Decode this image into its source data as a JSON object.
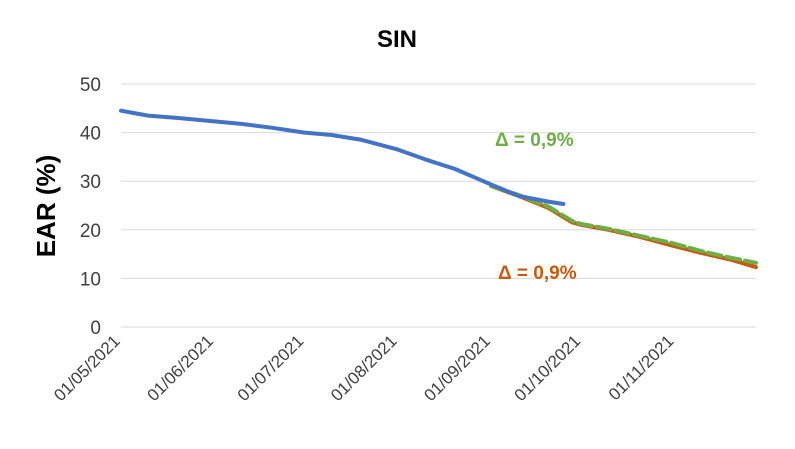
{
  "chart_data": {
    "type": "line",
    "title": "SIN",
    "ylabel": "EAR (%)",
    "xlabel": "",
    "ylim": [
      0,
      50
    ],
    "yticks": [
      "0",
      "10",
      "20",
      "30",
      "40",
      "50"
    ],
    "xlim": [
      "2021-05-01",
      "2021-11-28"
    ],
    "xticks": [
      "01/05/2021",
      "01/06/2021",
      "01/07/2021",
      "01/08/2021",
      "01/09/2021",
      "01/10/2021",
      "01/11/2021"
    ],
    "grid": "horizontal",
    "annotations": [
      {
        "text": "Δ = 0,9%",
        "color": "#70ad47"
      },
      {
        "text": "Δ = 0,9%",
        "color": "#c55a11"
      }
    ],
    "series": [
      {
        "color": "#c55a11",
        "style": "solid",
        "x": [
          "2021-09-01",
          "2021-09-10",
          "2021-09-20",
          "2021-09-28",
          "2021-10-01",
          "2021-10-10",
          "2021-10-20",
          "2021-10-31",
          "2021-11-10",
          "2021-11-20",
          "2021-11-28"
        ],
        "y": [
          29.0,
          27.0,
          24.5,
          21.5,
          21.0,
          20.0,
          18.6,
          16.8,
          15.2,
          13.8,
          12.3
        ]
      },
      {
        "color": "#70ad47",
        "style": "dashed",
        "x": [
          "2021-09-01",
          "2021-09-10",
          "2021-09-20",
          "2021-09-28",
          "2021-10-01",
          "2021-10-10",
          "2021-10-20",
          "2021-10-31",
          "2021-11-10",
          "2021-11-20",
          "2021-11-28"
        ],
        "y": [
          29.0,
          27.2,
          24.8,
          21.8,
          21.2,
          20.2,
          18.8,
          17.3,
          15.6,
          14.2,
          13.2
        ]
      },
      {
        "color": "#4472c4",
        "style": "solid",
        "x": [
          "2021-05-01",
          "2021-05-10",
          "2021-05-20",
          "2021-06-01",
          "2021-06-10",
          "2021-06-20",
          "2021-07-01",
          "2021-07-10",
          "2021-07-20",
          "2021-08-01",
          "2021-08-10",
          "2021-08-20",
          "2021-09-01",
          "2021-09-10",
          "2021-09-20",
          "2021-09-25"
        ],
        "y": [
          44.5,
          43.5,
          43.0,
          42.3,
          41.8,
          41.0,
          40.0,
          39.5,
          38.5,
          36.5,
          34.5,
          32.5,
          29.3,
          27.0,
          25.8,
          25.3
        ]
      }
    ]
  }
}
